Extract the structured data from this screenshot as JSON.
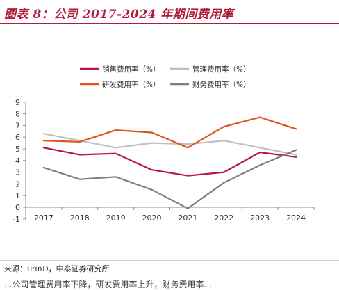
{
  "header": {
    "title": "图表 8：公司 2017-2024 年期间费用率"
  },
  "footer": {
    "source": "来源：iFinD，中泰证券研究所",
    "cutoff_text": "...公司管理费用率下降，研发费用率上升，财务费用率..."
  },
  "colors": {
    "title": "#b01c3c",
    "sales": "#b5193e",
    "admin": "#bfbfbf",
    "rnd": "#e0531c",
    "finance": "#7f7f7f"
  },
  "chart_data": {
    "type": "line",
    "x": [
      "2017",
      "2018",
      "2019",
      "2020",
      "2021",
      "2022",
      "2023",
      "2024"
    ],
    "ylim": [
      -1,
      9
    ],
    "yticks": [
      "9",
      "8",
      "7",
      "6",
      "5",
      "4",
      "3",
      "2",
      "1",
      "0",
      "-1"
    ],
    "grid": false,
    "legend_position": "top",
    "series": [
      {
        "name": "销售费用率（%）",
        "color_key": "sales",
        "values": [
          5.1,
          4.5,
          4.6,
          3.2,
          2.7,
          3.0,
          4.7,
          4.3
        ]
      },
      {
        "name": "管理费用率（%）",
        "color_key": "admin",
        "values": [
          6.3,
          5.7,
          5.1,
          5.5,
          5.4,
          5.7,
          5.1,
          4.5
        ]
      },
      {
        "name": "研发费用率（%）",
        "color_key": "rnd",
        "values": [
          5.7,
          5.6,
          6.6,
          6.4,
          5.1,
          6.9,
          7.7,
          6.7
        ]
      },
      {
        "name": "财务费用率（%）",
        "color_key": "finance",
        "values": [
          3.4,
          2.4,
          2.6,
          1.5,
          -0.1,
          2.1,
          3.6,
          4.9
        ]
      }
    ]
  }
}
